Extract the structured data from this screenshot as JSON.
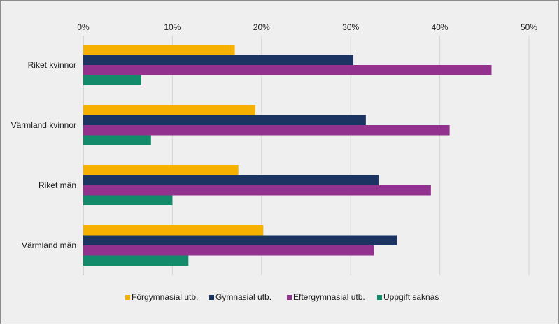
{
  "chart_data": {
    "type": "bar",
    "orientation": "horizontal",
    "categories": [
      "Riket kvinnor",
      "Värmland kvinnor",
      "Riket män",
      "Värmland män"
    ],
    "series": [
      {
        "name": "Förgymnasial utb.",
        "color": "#f5b000",
        "values": [
          17,
          19.3,
          17.4,
          20.2
        ]
      },
      {
        "name": "Gymnasial utb.",
        "color": "#1c3461",
        "values": [
          30.3,
          31.7,
          33.2,
          35.2
        ]
      },
      {
        "name": "Eftergymnasial utb.",
        "color": "#93318e",
        "values": [
          45.8,
          41.1,
          39,
          32.6
        ]
      },
      {
        "name": "Uppgift saknas",
        "color": "#138a6a",
        "values": [
          6.5,
          7.6,
          10,
          11.8
        ]
      }
    ],
    "xlim": [
      0,
      50
    ],
    "xticks": [
      "0%",
      "10%",
      "20%",
      "30%",
      "40%",
      "50%"
    ],
    "grid": true,
    "legend_position": "bottom"
  }
}
